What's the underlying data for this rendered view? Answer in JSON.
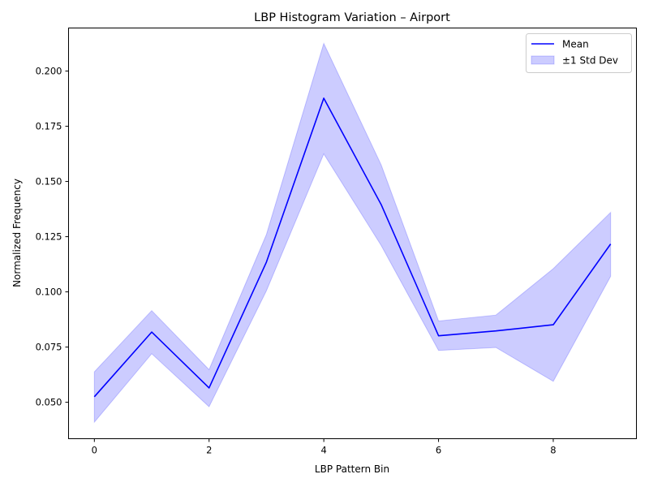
{
  "chart_data": {
    "type": "line",
    "title": "LBP Histogram Variation – Airport",
    "xlabel": "LBP Pattern Bin",
    "ylabel": "Normalized Frequency",
    "x": [
      0,
      1,
      2,
      3,
      4,
      5,
      6,
      7,
      8,
      9
    ],
    "xlim": [
      -0.45,
      9.45
    ],
    "ylim": [
      0.0335,
      0.2195
    ],
    "xticks": [
      0,
      2,
      4,
      6,
      8
    ],
    "yticks": [
      0.05,
      0.075,
      0.1,
      0.125,
      0.15,
      0.175,
      0.2
    ],
    "xtick_labels": [
      "0",
      "2",
      "4",
      "6",
      "8"
    ],
    "ytick_labels": [
      "0.050",
      "0.075",
      "0.100",
      "0.125",
      "0.150",
      "0.175",
      "0.200"
    ],
    "series": [
      {
        "name": "Mean",
        "kind": "line",
        "color": "#0000ff",
        "values": [
          0.0525,
          0.0818,
          0.0565,
          0.1135,
          0.1877,
          0.1395,
          0.0801,
          0.0823,
          0.0851,
          0.1217
        ]
      },
      {
        "name": "±1 Std Dev",
        "kind": "band",
        "color": "#0000ff",
        "upper": [
          0.0638,
          0.0915,
          0.0648,
          0.126,
          0.2125,
          0.1575,
          0.0868,
          0.0895,
          0.1105,
          0.136
        ],
        "lower": [
          0.041,
          0.072,
          0.048,
          0.1005,
          0.1625,
          0.121,
          0.0735,
          0.0748,
          0.0595,
          0.107
        ]
      }
    ],
    "legend": {
      "position": "top-right",
      "entries": [
        "Mean",
        "±1 Std Dev"
      ]
    },
    "grid": false
  }
}
